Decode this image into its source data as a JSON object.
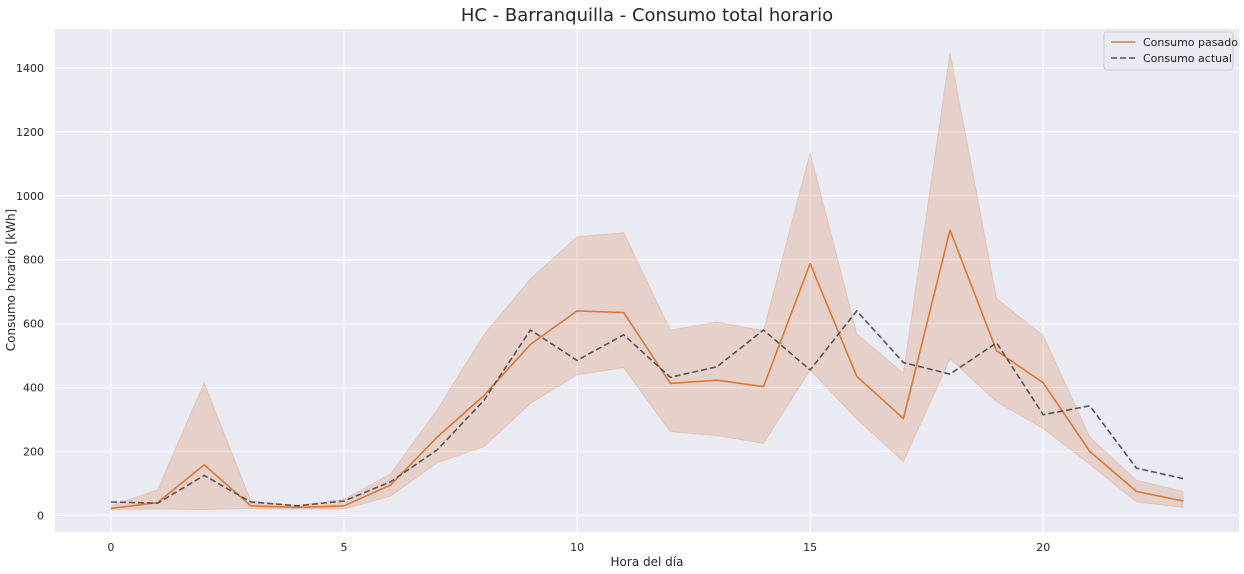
{
  "chart_data": {
    "type": "line",
    "title": "HC - Barranquilla - Consumo total horario",
    "xlabel": "Hora del día",
    "ylabel": "Consumo horario [kWh]",
    "xlim": [
      -1.2,
      24.2
    ],
    "ylim": [
      -52,
      1522
    ],
    "xticks": [
      0,
      5,
      10,
      15,
      20
    ],
    "yticks": [
      0,
      200,
      400,
      600,
      800,
      1000,
      1200,
      1400
    ],
    "grid": true,
    "legend_position": "top-right",
    "colors": {
      "background": "#eaeaf2",
      "grid": "#ffffff",
      "pasado": "#dd7733",
      "band": "#dd8452",
      "actual": "#555555"
    },
    "x": [
      0,
      1,
      2,
      3,
      4,
      5,
      6,
      7,
      8,
      9,
      10,
      11,
      12,
      13,
      14,
      15,
      16,
      17,
      18,
      19,
      20,
      21,
      22,
      23
    ],
    "series": [
      {
        "name": "Consumo pasado",
        "style": "solid",
        "values": [
          22,
          40,
          158,
          30,
          25,
          30,
          95,
          245,
          375,
          535,
          640,
          635,
          413,
          423,
          403,
          788,
          435,
          303,
          893,
          515,
          415,
          200,
          75,
          45
        ],
        "ci_lower": [
          18,
          20,
          18,
          22,
          20,
          20,
          60,
          165,
          215,
          350,
          440,
          462,
          262,
          250,
          225,
          455,
          302,
          168,
          490,
          355,
          272,
          160,
          42,
          25
        ],
        "ci_upper": [
          30,
          80,
          415,
          45,
          30,
          50,
          130,
          330,
          565,
          740,
          872,
          885,
          580,
          605,
          578,
          1135,
          568,
          445,
          1448,
          678,
          563,
          245,
          110,
          75
        ]
      },
      {
        "name": "Consumo actual",
        "style": "dashed",
        "values": [
          42,
          38,
          125,
          42,
          30,
          45,
          105,
          205,
          360,
          580,
          485,
          565,
          432,
          465,
          580,
          455,
          640,
          478,
          442,
          540,
          315,
          343,
          148,
          115
        ]
      }
    ]
  }
}
